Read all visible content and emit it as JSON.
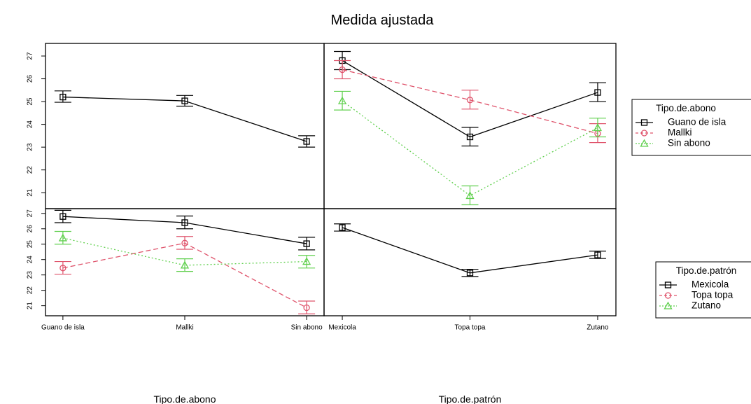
{
  "title": "Medida ajustada",
  "colors": {
    "s1": "#000000",
    "s2": "#DF536B",
    "s3": "#61D04F"
  },
  "y_ticks": [
    21,
    22,
    23,
    24,
    25,
    26,
    27
  ],
  "chart_data": [
    {
      "type": "line",
      "panel": "top-left",
      "categories": [
        "Guano de isla",
        "Mallki",
        "Sin abono"
      ],
      "xlabel": "",
      "ylabel": "",
      "ylim": [
        20.3,
        27.4
      ],
      "series": [
        {
          "values": [
            25.2,
            25.03,
            23.25
          ],
          "lower": [
            24.97,
            24.8,
            23.0
          ],
          "upper": [
            25.47,
            25.27,
            23.5
          ],
          "marker": "square",
          "dash": "solid",
          "color_key": "s1"
        }
      ]
    },
    {
      "type": "line",
      "panel": "top-right",
      "categories": [
        "Mexicola",
        "Topa topa",
        "Zutano"
      ],
      "xlabel": "",
      "ylabel": "",
      "ylim": [
        20.3,
        27.4
      ],
      "series": [
        {
          "name": "Guano de isla",
          "values": [
            26.8,
            23.45,
            25.4
          ],
          "lower": [
            26.4,
            23.05,
            25.0
          ],
          "upper": [
            27.2,
            23.87,
            25.83
          ],
          "marker": "square",
          "dash": "solid",
          "color_key": "s1"
        },
        {
          "name": "Mallki",
          "values": [
            26.4,
            25.07,
            23.6
          ],
          "lower": [
            26.0,
            24.67,
            23.2
          ],
          "upper": [
            26.8,
            25.5,
            24.03
          ],
          "marker": "circle",
          "dash": "dashed",
          "color_key": "s2"
        },
        {
          "name": "Sin abono",
          "values": [
            25.03,
            20.87,
            23.85
          ],
          "lower": [
            24.63,
            20.47,
            23.45
          ],
          "upper": [
            25.45,
            21.3,
            24.27
          ],
          "marker": "triangle",
          "dash": "dotted",
          "color_key": "s3"
        }
      ]
    },
    {
      "type": "line",
      "panel": "bottom-left",
      "categories": [
        "Guano de isla",
        "Mallki",
        "Sin abono"
      ],
      "xlabel": "Tipo.de.abono",
      "ylabel": "",
      "ylim": [
        20.3,
        27.4
      ],
      "series": [
        {
          "name": "Mexicola",
          "values": [
            26.8,
            26.4,
            25.03
          ],
          "lower": [
            26.4,
            26.0,
            24.63
          ],
          "upper": [
            27.2,
            26.83,
            25.45
          ],
          "marker": "square",
          "dash": "solid",
          "color_key": "s1"
        },
        {
          "name": "Topa topa",
          "values": [
            23.45,
            25.07,
            20.87
          ],
          "lower": [
            23.05,
            24.67,
            20.47
          ],
          "upper": [
            23.87,
            25.5,
            21.3
          ],
          "marker": "circle",
          "dash": "dashed",
          "color_key": "s2"
        },
        {
          "name": "Zutano",
          "values": [
            25.4,
            23.63,
            23.87
          ],
          "lower": [
            25.0,
            23.23,
            23.45
          ],
          "upper": [
            25.83,
            24.05,
            24.27
          ],
          "marker": "triangle",
          "dash": "dotted",
          "color_key": "s3"
        }
      ]
    },
    {
      "type": "line",
      "panel": "bottom-right",
      "categories": [
        "Mexicola",
        "Topa topa",
        "Zutano"
      ],
      "xlabel": "Tipo.de.patrón",
      "ylabel": "",
      "ylim": [
        20.3,
        27.4
      ],
      "series": [
        {
          "values": [
            26.08,
            23.13,
            24.3
          ],
          "lower": [
            25.85,
            22.9,
            24.07
          ],
          "upper": [
            26.32,
            23.37,
            24.55
          ],
          "marker": "square",
          "dash": "solid",
          "color_key": "s1"
        }
      ]
    }
  ],
  "legends": [
    {
      "title": "Tipo.de.abono",
      "items": [
        "Guano de isla",
        "Mallki",
        "Sin abono"
      ]
    },
    {
      "title": "Tipo.de.patrón",
      "items": [
        "Mexicola",
        "Topa topa",
        "Zutano"
      ]
    }
  ]
}
